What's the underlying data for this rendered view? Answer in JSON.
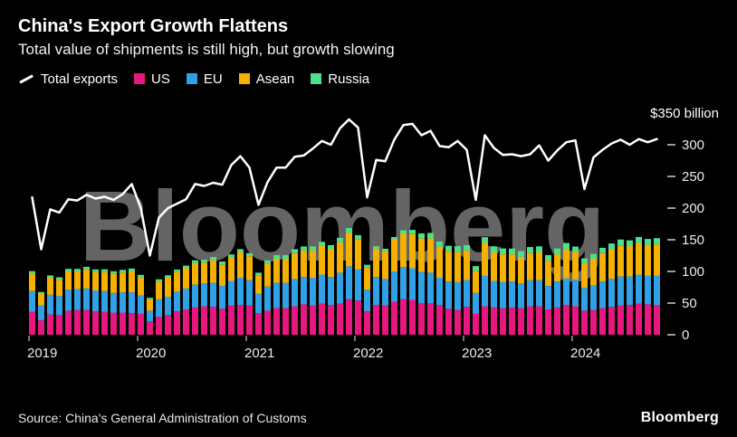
{
  "header": {
    "title": "China's Export Growth Flattens",
    "subtitle": "Total value of shipments is still high, but growth slowing"
  },
  "legend": [
    {
      "label": "Total exports",
      "marker": "line",
      "color": "#ffffff"
    },
    {
      "label": "US",
      "marker": "square",
      "color": "#e6177e"
    },
    {
      "label": "EU",
      "marker": "square",
      "color": "#30a1e6"
    },
    {
      "label": "Asean",
      "marker": "square",
      "color": "#f5b000"
    },
    {
      "label": "Russia",
      "marker": "square",
      "color": "#4ce08d"
    }
  ],
  "footer": {
    "source": "Source: China's General Administration of Customs",
    "logo": "Bloomberg"
  },
  "chart_data": {
    "type": "combo",
    "bar_mode": "stacked",
    "title": "China's Export Growth Flattens",
    "subtitle": "Total value of shipments is still high, but growth slowing",
    "ylabel_top": "$350 billion",
    "ylim": [
      0,
      350
    ],
    "y_ticks": [
      0,
      50,
      100,
      150,
      200,
      250,
      300
    ],
    "x_year_labels": [
      "2019",
      "2020",
      "2021",
      "2022",
      "2023",
      "2024"
    ],
    "legend_position": "top",
    "grid": false,
    "watermark": "Bloomberg",
    "watermark_color": "#646464",
    "x": [
      "2019-01",
      "2019-02",
      "2019-03",
      "2019-04",
      "2019-05",
      "2019-06",
      "2019-07",
      "2019-08",
      "2019-09",
      "2019-10",
      "2019-11",
      "2019-12",
      "2020-01",
      "2020-02",
      "2020-03",
      "2020-04",
      "2020-05",
      "2020-06",
      "2020-07",
      "2020-08",
      "2020-09",
      "2020-10",
      "2020-11",
      "2020-12",
      "2021-01",
      "2021-02",
      "2021-03",
      "2021-04",
      "2021-05",
      "2021-06",
      "2021-07",
      "2021-08",
      "2021-09",
      "2021-10",
      "2021-11",
      "2021-12",
      "2022-01",
      "2022-02",
      "2022-03",
      "2022-04",
      "2022-05",
      "2022-06",
      "2022-07",
      "2022-08",
      "2022-09",
      "2022-10",
      "2022-11",
      "2022-12",
      "2023-01",
      "2023-02",
      "2023-03",
      "2023-04",
      "2023-05",
      "2023-06",
      "2023-07",
      "2023-08",
      "2023-09",
      "2023-10",
      "2023-11",
      "2023-12",
      "2024-01",
      "2024-02",
      "2024-03",
      "2024-04",
      "2024-05",
      "2024-06",
      "2024-07",
      "2024-08",
      "2024-09",
      "2024-10"
    ],
    "series": [
      {
        "name": "US",
        "type": "bar",
        "color": "#e6177e",
        "values": [
          36,
          23,
          32,
          31,
          38,
          39,
          39,
          37,
          36,
          35,
          35,
          34,
          33,
          21,
          28,
          31,
          37,
          40,
          43,
          45,
          44,
          41,
          46,
          47,
          46,
          34,
          38,
          42,
          42,
          45,
          48,
          46,
          49,
          47,
          49,
          56,
          54,
          37,
          47,
          46,
          52,
          56,
          55,
          50,
          50,
          47,
          41,
          39,
          44,
          33,
          45,
          43,
          42,
          43,
          42,
          45,
          45,
          40,
          43,
          47,
          45,
          38,
          39,
          42,
          44,
          46,
          47,
          49,
          48,
          47
        ]
      },
      {
        "name": "EU",
        "type": "bar",
        "color": "#30a1e6",
        "values": [
          33,
          23,
          31,
          30,
          33,
          33,
          34,
          33,
          33,
          31,
          32,
          33,
          29,
          17,
          28,
          29,
          31,
          33,
          36,
          36,
          38,
          36,
          39,
          43,
          40,
          31,
          38,
          40,
          40,
          43,
          43,
          44,
          46,
          44,
          49,
          52,
          49,
          34,
          44,
          42,
          48,
          51,
          50,
          49,
          48,
          43,
          43,
          44,
          42,
          33,
          48,
          42,
          41,
          41,
          39,
          41,
          41,
          37,
          41,
          42,
          42,
          36,
          39,
          42,
          44,
          46,
          45,
          46,
          45,
          46
        ]
      },
      {
        "name": "Asean",
        "type": "bar",
        "color": "#f5b000",
        "values": [
          28,
          19,
          27,
          26,
          29,
          28,
          30,
          29,
          30,
          30,
          31,
          33,
          29,
          18,
          28,
          30,
          31,
          32,
          34,
          33,
          36,
          34,
          37,
          40,
          38,
          29,
          36,
          38,
          38,
          41,
          42,
          43,
          45,
          44,
          48,
          53,
          48,
          35,
          45,
          44,
          50,
          53,
          54,
          53,
          54,
          49,
          48,
          48,
          47,
          35,
          52,
          45,
          44,
          43,
          42,
          43,
          44,
          40,
          43,
          46,
          44,
          39,
          42,
          45,
          47,
          49,
          48,
          50,
          49,
          50
        ]
      },
      {
        "name": "Russia",
        "type": "bar",
        "color": "#4ce08d",
        "values": [
          3.5,
          2.5,
          3.7,
          3.8,
          4.1,
          4,
          4.3,
          4.2,
          4.4,
          4.3,
          4.5,
          4.6,
          3.6,
          2.4,
          3.6,
          3.9,
          4,
          4.2,
          4.6,
          4.5,
          4.8,
          4.7,
          4.9,
          5.2,
          5,
          4,
          5.5,
          5.8,
          5.9,
          6.2,
          6.4,
          6.5,
          6.8,
          6.6,
          7,
          7.5,
          6.3,
          4.5,
          3.8,
          3.8,
          4.3,
          5,
          6.7,
          8,
          8.8,
          8.3,
          8.5,
          8.9,
          8.5,
          7.4,
          9,
          9.6,
          9.3,
          9.1,
          9.2,
          9.5,
          9.6,
          8.8,
          9.2,
          9.9,
          8.3,
          7.6,
          7.6,
          8.3,
          9.1,
          9.4,
          9.1,
          9.4,
          9.3,
          9.5
        ]
      },
      {
        "name": "Total exports",
        "type": "line",
        "color": "#ffffff",
        "values": [
          217,
          135,
          198,
          193,
          214,
          212,
          221,
          215,
          218,
          213,
          222,
          238,
          200,
          125,
          185,
          200,
          207,
          214,
          238,
          235,
          240,
          237,
          268,
          282,
          264,
          205,
          241,
          264,
          264,
          281,
          283,
          294,
          306,
          300,
          326,
          340,
          327,
          217,
          276,
          274,
          308,
          331,
          333,
          315,
          322,
          298,
          296,
          306,
          292,
          213,
          315,
          295,
          284,
          285,
          282,
          285,
          299,
          275,
          291,
          304,
          307,
          230,
          280,
          292,
          302,
          308,
          300,
          309,
          304,
          309
        ]
      }
    ]
  }
}
